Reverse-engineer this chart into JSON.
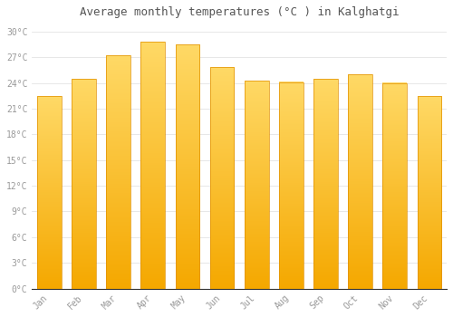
{
  "title": "Average monthly temperatures (°C ) in Kalghatgi",
  "months": [
    "Jan",
    "Feb",
    "Mar",
    "Apr",
    "May",
    "Jun",
    "Jul",
    "Aug",
    "Sep",
    "Oct",
    "Nov",
    "Dec"
  ],
  "values": [
    22.5,
    24.5,
    27.2,
    28.8,
    28.5,
    25.8,
    24.3,
    24.1,
    24.5,
    25.0,
    24.0,
    22.5
  ],
  "bar_color_top": "#FFD966",
  "bar_color_bottom": "#F5A800",
  "bar_edge_color": "#E09000",
  "background_color": "#FFFFFF",
  "plot_bg_color": "#FFFFFF",
  "grid_color": "#DDDDDD",
  "tick_label_color": "#999999",
  "title_color": "#555555",
  "ylim": [
    0,
    31
  ],
  "yticks": [
    0,
    3,
    6,
    9,
    12,
    15,
    18,
    21,
    24,
    27,
    30
  ],
  "ytick_labels": [
    "0°C",
    "3°C",
    "6°C",
    "9°C",
    "12°C",
    "15°C",
    "18°C",
    "21°C",
    "24°C",
    "27°C",
    "30°C"
  ]
}
